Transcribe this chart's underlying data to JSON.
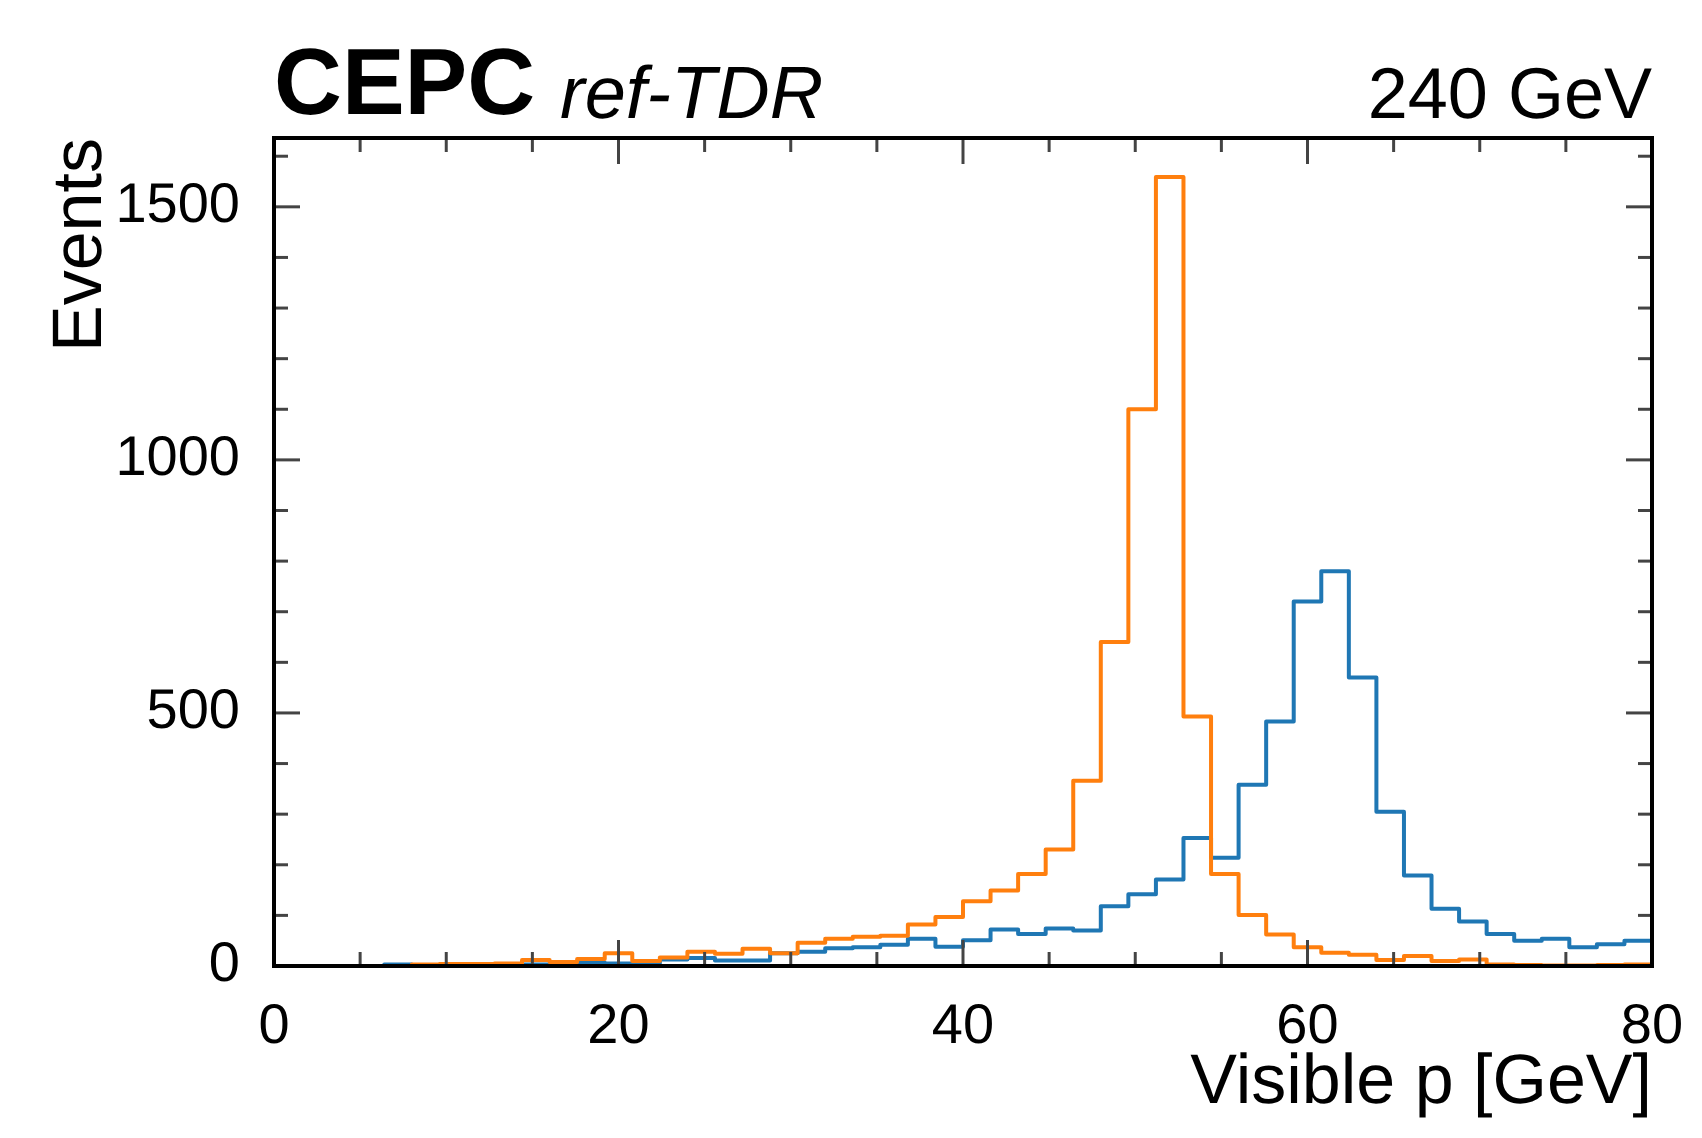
{
  "chart_data": {
    "type": "histogram",
    "title": "CEPC",
    "subtitle": "ref-TDR",
    "xlabel": "Visible p [GeV]",
    "ylabel": "Events",
    "annotations": [
      "240 GeV"
    ],
    "bins": [
      0,
      1.6,
      3.2,
      4.8,
      6.4,
      8,
      9.6,
      11.2,
      12.8,
      14.4,
      16,
      17.6,
      19.2,
      20.8,
      22.4,
      24,
      25.6,
      27.2,
      28.8,
      30.4,
      32,
      33.6,
      35.2,
      36.8,
      38.4,
      40,
      41.6,
      43.2,
      44.8,
      46.4,
      48,
      49.6,
      51.2,
      52.8,
      54.4,
      56,
      57.6,
      59.2,
      60.8,
      62.4,
      64,
      65.6,
      67.2,
      68.8,
      70.4,
      72,
      73.6,
      75.2,
      76.8,
      78.4,
      80
    ],
    "series": [
      {
        "color": "#ff7f0e",
        "values": [
          0,
          0,
          0,
          0,
          0,
          3,
          4,
          4,
          5,
          12,
          8,
          14,
          25,
          10,
          17,
          28,
          24,
          34,
          25,
          46,
          54,
          58,
          60,
          82,
          97,
          128,
          149,
          182,
          230,
          366,
          640,
          1100,
          1559,
          493,
          182,
          101,
          62,
          37,
          26,
          22,
          12,
          20,
          10,
          13,
          3,
          2,
          1,
          1,
          2,
          3
        ]
      },
      {
        "color": "#1f77b4",
        "values": [
          0,
          0,
          0,
          0,
          3,
          1,
          1,
          1,
          2,
          3,
          3,
          7,
          5,
          5,
          13,
          16,
          11,
          11,
          25,
          28,
          35,
          37,
          42,
          54,
          38,
          51,
          72,
          63,
          74,
          70,
          118,
          142,
          171,
          253,
          214,
          358,
          483,
          720,
          780,
          570,
          305,
          179,
          113,
          88,
          63,
          50,
          54,
          37,
          43,
          50
        ]
      }
    ],
    "xlim": [
      0,
      80
    ],
    "ylim": [
      0,
      1636
    ],
    "xticks": [
      0,
      {
        "value": 5,
        "label": null
      },
      {
        "value": 10,
        "label": null
      },
      {
        "value": 15,
        "label": null
      },
      20,
      {
        "value": 25,
        "label": null
      },
      {
        "value": 30,
        "label": null
      },
      {
        "value": 35,
        "label": null
      },
      40,
      {
        "value": 45,
        "label": null
      },
      {
        "value": 50,
        "label": null
      },
      {
        "value": 55,
        "label": null
      },
      60,
      {
        "value": 65,
        "label": null
      },
      {
        "value": 70,
        "label": null
      },
      {
        "value": 75,
        "label": null
      },
      80
    ],
    "yticks": [
      0,
      {
        "value": 100,
        "label": null
      },
      {
        "value": 200,
        "label": null
      },
      {
        "value": 300,
        "label": null
      },
      {
        "value": 400,
        "label": null
      },
      500,
      {
        "value": 600,
        "label": null
      },
      {
        "value": 700,
        "label": null
      },
      {
        "value": 800,
        "label": null
      },
      {
        "value": 900,
        "label": null
      },
      1000,
      {
        "value": 1100,
        "label": null
      },
      {
        "value": 1200,
        "label": null
      },
      {
        "value": 1300,
        "label": null
      },
      {
        "value": 1400,
        "label": null
      },
      1500,
      {
        "value": 1600,
        "label": null
      }
    ]
  }
}
